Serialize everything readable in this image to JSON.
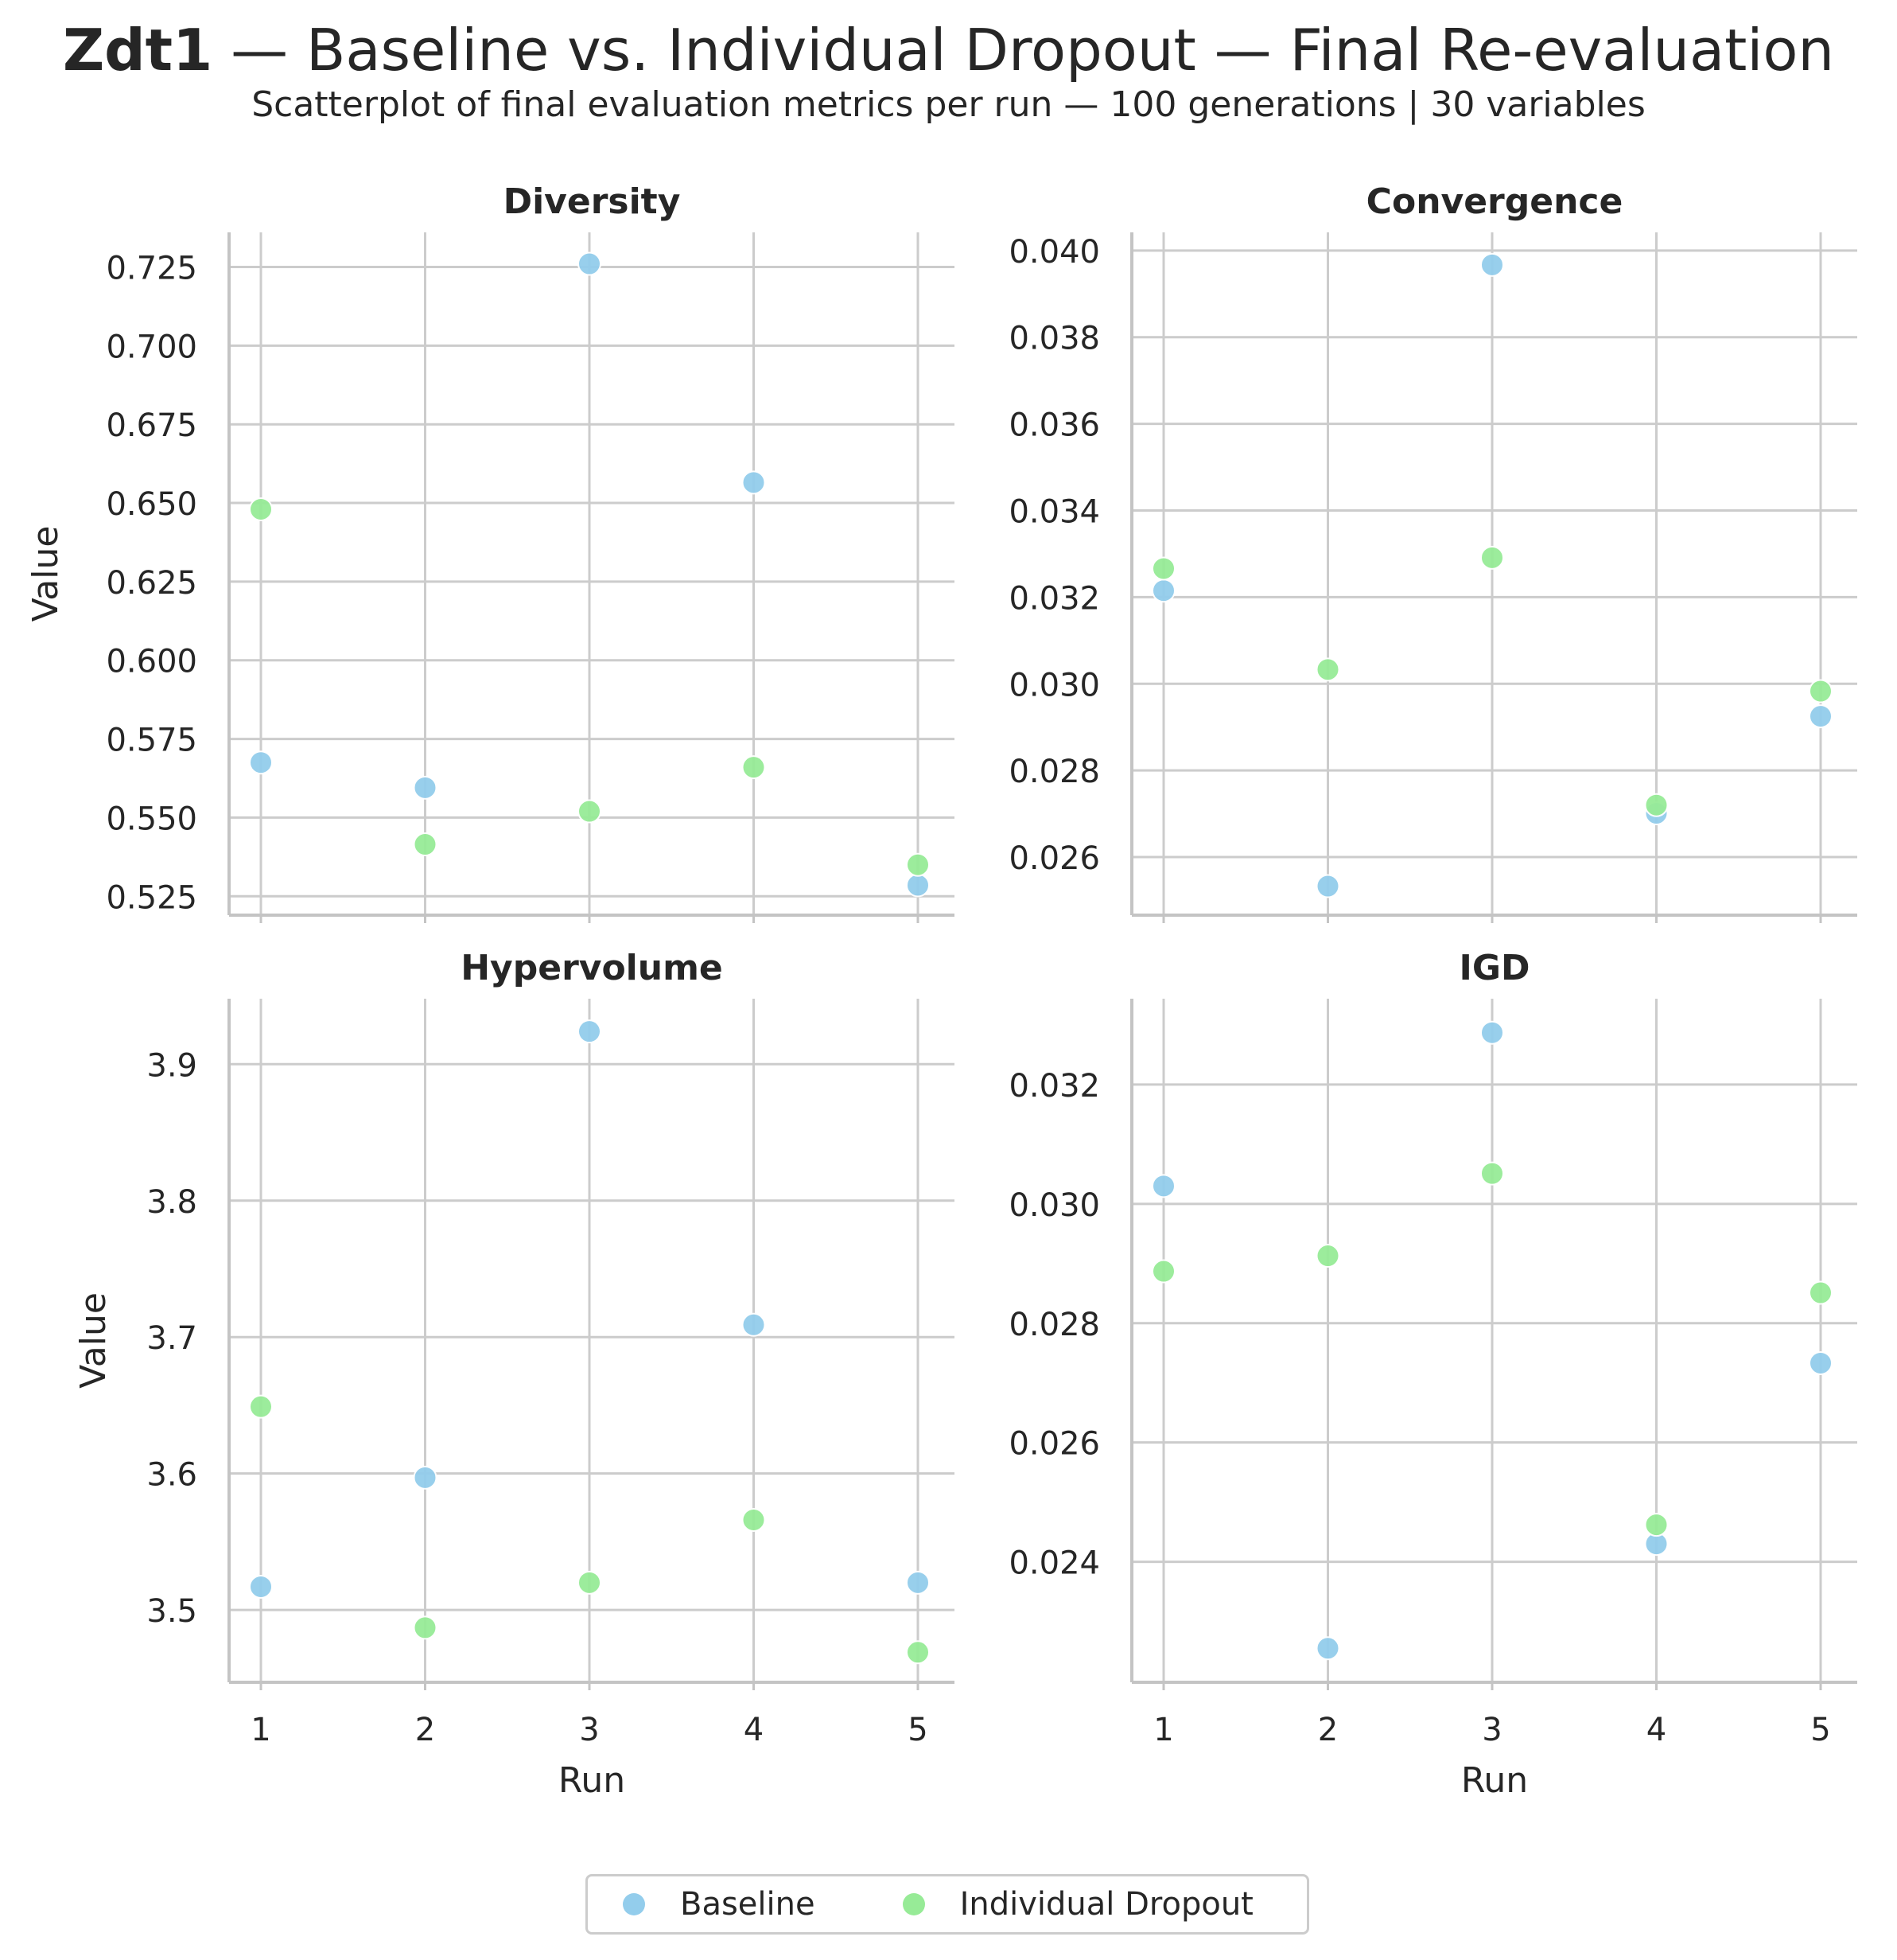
{
  "title": {
    "bold": "Zdt1",
    "rest": " — Baseline vs. Individual Dropout — Final Re-evaluation"
  },
  "subtitle": "Scatterplot of final evaluation metrics per run — 100 generations | 30 variables",
  "colors": {
    "Baseline": "#93cdec",
    "Individual Dropout": "#97eb97",
    "grid": "#cccccc",
    "axis": "#c4c4c4"
  },
  "legend": {
    "baseline": "Baseline",
    "dropout": "Individual Dropout",
    "placement": "bottom-center"
  },
  "chart_data": [
    {
      "type": "scatter",
      "title": "Diversity",
      "xlabel": "",
      "ylabel": "Value",
      "x": [
        1,
        2,
        3,
        4,
        5
      ],
      "xticks": [
        "1",
        "2",
        "3",
        "4",
        "5"
      ],
      "ylim": [
        0.519,
        0.736
      ],
      "yticks": [
        "0.525",
        "0.550",
        "0.575",
        "0.600",
        "0.625",
        "0.650",
        "0.675",
        "0.700",
        "0.725"
      ],
      "series": [
        {
          "name": "Baseline",
          "values": [
            0.5675,
            0.5595,
            0.726,
            0.6565,
            0.5285
          ]
        },
        {
          "name": "Individual Dropout",
          "values": [
            0.648,
            0.5415,
            0.552,
            0.566,
            0.535
          ]
        }
      ]
    },
    {
      "type": "scatter",
      "title": "Convergence",
      "xlabel": "",
      "ylabel": "",
      "x": [
        1,
        2,
        3,
        4,
        5
      ],
      "xticks": [
        "1",
        "2",
        "3",
        "4",
        "5"
      ],
      "ylim": [
        0.02466,
        0.04042
      ],
      "yticks": [
        "0.026",
        "0.028",
        "0.030",
        "0.032",
        "0.034",
        "0.036",
        "0.038",
        "0.040"
      ],
      "series": [
        {
          "name": "Baseline",
          "values": [
            0.03215,
            0.02533,
            0.03967,
            0.02701,
            0.02925
          ]
        },
        {
          "name": "Individual Dropout",
          "values": [
            0.03266,
            0.03033,
            0.03291,
            0.0272,
            0.02983
          ]
        }
      ]
    },
    {
      "type": "scatter",
      "title": "Hypervolume",
      "xlabel": "Run",
      "ylabel": "Value",
      "x": [
        1,
        2,
        3,
        4,
        5
      ],
      "xticks": [
        "1",
        "2",
        "3",
        "4",
        "5"
      ],
      "ylim": [
        3.447,
        3.948
      ],
      "yticks": [
        "3.5",
        "3.6",
        "3.7",
        "3.8",
        "3.9"
      ],
      "series": [
        {
          "name": "Baseline",
          "values": [
            3.517,
            3.597,
            3.924,
            3.709,
            3.52
          ]
        },
        {
          "name": "Individual Dropout",
          "values": [
            3.649,
            3.487,
            3.52,
            3.566,
            3.469
          ]
        }
      ]
    },
    {
      "type": "scatter",
      "title": "IGD",
      "xlabel": "Run",
      "ylabel": "",
      "x": [
        1,
        2,
        3,
        4,
        5
      ],
      "xticks": [
        "1",
        "2",
        "3",
        "4",
        "5"
      ],
      "ylim": [
        0.02198,
        0.03344
      ],
      "yticks": [
        "0.024",
        "0.026",
        "0.028",
        "0.030",
        "0.032"
      ],
      "series": [
        {
          "name": "Baseline",
          "values": [
            0.0303,
            0.02255,
            0.03287,
            0.0243,
            0.02733
          ]
        },
        {
          "name": "Individual Dropout",
          "values": [
            0.02887,
            0.02913,
            0.03051,
            0.02462,
            0.02851
          ]
        }
      ]
    }
  ]
}
